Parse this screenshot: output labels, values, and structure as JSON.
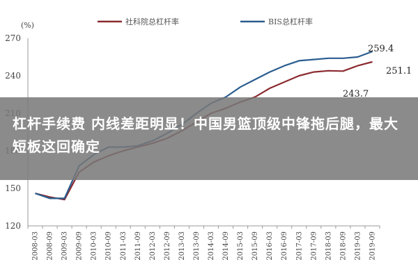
{
  "headline": "杠杆手续费 内线差距明显！中国男篮顶级中锋拖后腿，最大短板这回确定",
  "colors": {
    "series_red": "#8b2a2f",
    "series_blue": "#2a5d8f",
    "overlay": "#787878"
  },
  "chart_data": {
    "type": "line",
    "unit": "(%)",
    "ylim": [
      120,
      270
    ],
    "yticks": [
      "120",
      "150",
      "180",
      "210",
      "240",
      "270"
    ],
    "ytick_values": [
      120,
      150,
      180,
      210,
      240,
      270
    ],
    "grid": false,
    "legend_position": "top",
    "x": [
      "2008-03",
      "2008-09",
      "2009-03",
      "2009-09",
      "2010-03",
      "2010-09",
      "2011-03",
      "2011-09",
      "2012-03",
      "2012-09",
      "2013-03",
      "2013-09",
      "2014-03",
      "2014-09",
      "2015-03",
      "2015-09",
      "2016-03",
      "2016-09",
      "2017-03",
      "2017-09",
      "2018-03",
      "2018-09",
      "2019-03",
      "2019-09"
    ],
    "series": [
      {
        "name": "社科院总杠杆率",
        "color": "#8b2a2f",
        "values": [
          146,
          143,
          141,
          163,
          171,
          176,
          180,
          183,
          186,
          190,
          196,
          203,
          210,
          214,
          219,
          223,
          230,
          235,
          240,
          243,
          244,
          243.7,
          248,
          251.1
        ]
      },
      {
        "name": "BIS总杠杆率",
        "color": "#2a5d8f",
        "values": [
          146,
          142,
          142,
          168,
          177,
          183,
          183,
          184,
          188,
          194,
          201,
          210,
          218,
          223,
          231,
          237,
          243,
          248,
          252,
          253,
          254,
          254,
          255,
          259.4
        ]
      }
    ],
    "annotations": [
      "259.4",
      "251.1",
      "243.7"
    ]
  }
}
